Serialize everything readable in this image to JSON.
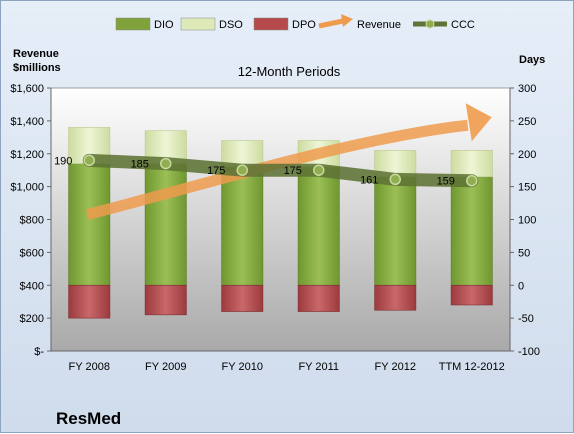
{
  "company": "ResMed",
  "chart_data": {
    "type": "bar",
    "title": "12-Month Periods",
    "categories": [
      "FY 2008",
      "FY 2009",
      "FY 2010",
      "FY 2011",
      "FY 2012",
      "TTM 12-2012"
    ],
    "left_axis": {
      "label": "Revenue\n$millions",
      "min": 0,
      "max": 1600,
      "step": 200,
      "tick_labels": [
        "$-",
        "$200",
        "$400",
        "$600",
        "$800",
        "$1,000",
        "$1,200",
        "$1,400",
        "$1,600"
      ]
    },
    "right_axis": {
      "label": "Days",
      "min": -100,
      "max": 300,
      "step": 50,
      "tick_labels": [
        "-100",
        "-50",
        "0",
        "50",
        "100",
        "150",
        "200",
        "250",
        "300"
      ]
    },
    "series": [
      {
        "name": "DIO",
        "axis": "right",
        "stack": "positive",
        "values": [
          185,
          185,
          180,
          180,
          165,
          165
        ],
        "color": "#7fa33a"
      },
      {
        "name": "DSO",
        "axis": "right",
        "stack": "positive",
        "values": [
          55,
          50,
          40,
          40,
          40,
          40
        ],
        "color": "#dde9b8"
      },
      {
        "name": "DPO",
        "axis": "right",
        "stack": "negative",
        "values": [
          -50,
          -45,
          -40,
          -40,
          -38,
          -30
        ],
        "color": "#b54a4d"
      },
      {
        "name": "Revenue",
        "type": "arrow",
        "color": "#ef9b4d"
      },
      {
        "name": "CCC",
        "type": "line",
        "axis": "right",
        "values": [
          190,
          185,
          175,
          175,
          161,
          159
        ],
        "color": "#5f7335"
      }
    ],
    "data_labels": [
      "190",
      "185",
      "175",
      "175",
      "161",
      "159"
    ],
    "legend_position": "top",
    "grid": false
  }
}
